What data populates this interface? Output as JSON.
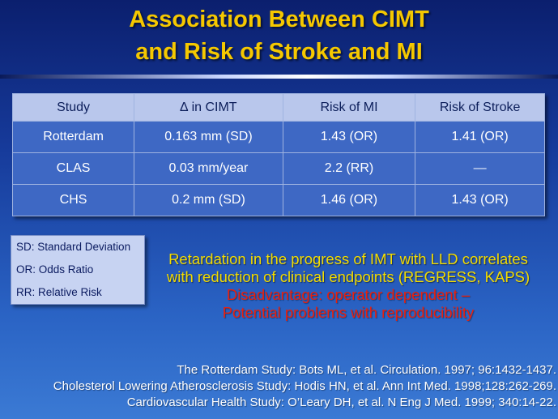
{
  "title": {
    "line1": "Association Between CIMT",
    "line2": "and Risk of Stroke and MI"
  },
  "table": {
    "headers": [
      "Study",
      "∆  in CIMT",
      "Risk of MI",
      "Risk of Stroke"
    ],
    "rows": [
      [
        "Rotterdam",
        "0.163 mm (SD)",
        "1.43 (OR)",
        "1.41 (OR)"
      ],
      [
        "CLAS",
        "0.03 mm/year",
        "2.2 (RR)",
        "—"
      ],
      [
        "CHS",
        "0.2 mm (SD)",
        "1.46 (OR)",
        "1.43 (OR)"
      ]
    ]
  },
  "legend": [
    "SD: Standard Deviation",
    "OR: Odds Ratio",
    "RR: Relative Risk"
  ],
  "message": {
    "line1": "Retardation in the progress of IMT with LLD correlates",
    "line2": "with reduction of clinical endpoints (REGRESS, KAPS)",
    "line3": "Disadvantage: operator dependent –",
    "line4": "Potential problems with reproducibility"
  },
  "references": [
    "The Rotterdam Study: Bots ML, et al. Circulation. 1997; 96:1432-1437.",
    "Cholesterol Lowering Atherosclerosis Study: Hodis HN, et al. Ann Int Med. 1998;128:262-269.",
    "Cardiovascular Health Study: O’Leary DH, et al. N Eng J Med. 1999; 340:14-22."
  ],
  "colors": {
    "title": "#f5c800",
    "highlight_text": "#f3dc00",
    "warning_text": "#e8200e",
    "table_header_bg": "#b9c7ec",
    "table_cell_bg": "#3e68c4"
  }
}
